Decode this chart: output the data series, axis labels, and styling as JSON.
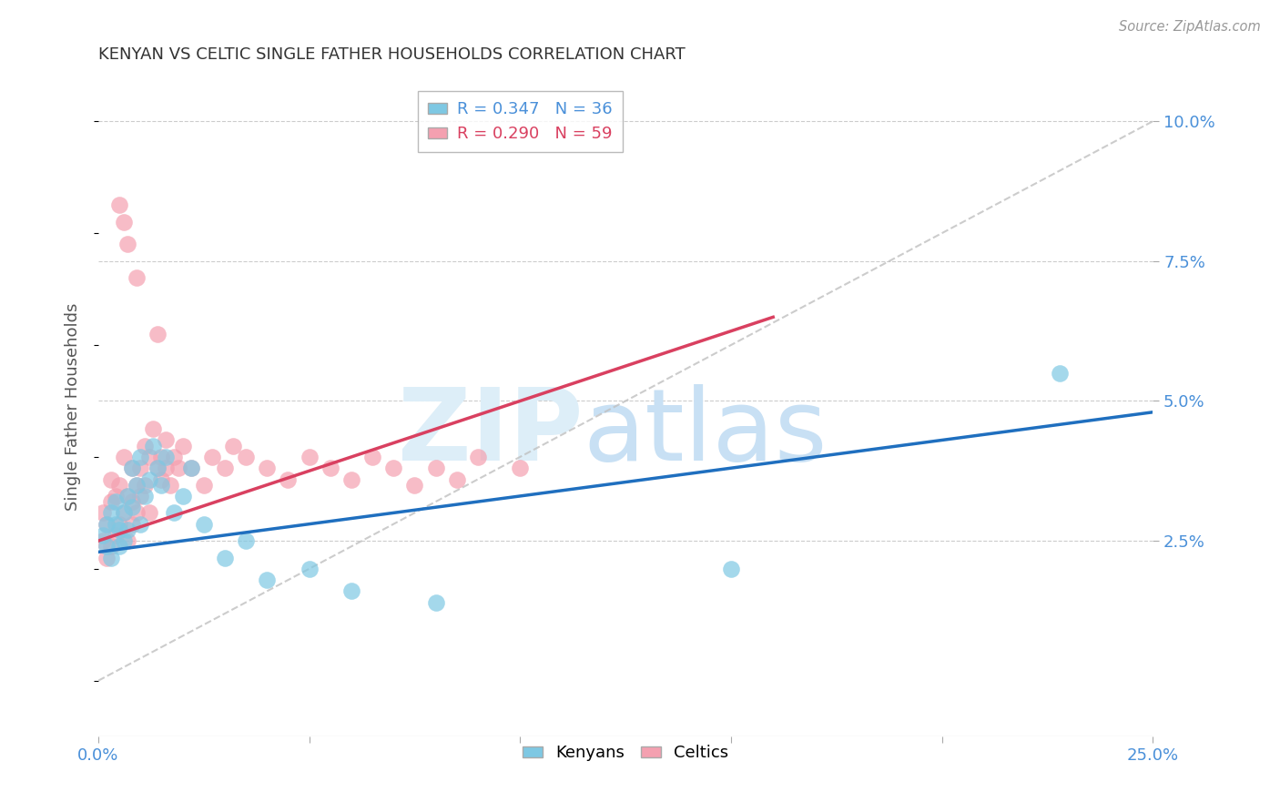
{
  "title": "KENYAN VS CELTIC SINGLE FATHER HOUSEHOLDS CORRELATION CHART",
  "source": "Source: ZipAtlas.com",
  "ylabel": "Single Father Households",
  "xlim": [
    0.0,
    0.25
  ],
  "ylim": [
    -0.01,
    0.108
  ],
  "yticks": [
    0.025,
    0.05,
    0.075,
    0.1
  ],
  "ytick_labels": [
    "2.5%",
    "5.0%",
    "7.5%",
    "10.0%"
  ],
  "xticks": [
    0.0,
    0.05,
    0.1,
    0.15,
    0.2,
    0.25
  ],
  "xtick_labels": [
    "0.0%",
    "",
    "",
    "",
    "",
    "25.0%"
  ],
  "kenyan_R": 0.347,
  "kenyan_N": 36,
  "celtic_R": 0.29,
  "celtic_N": 59,
  "kenyan_color": "#7ec8e3",
  "celtic_color": "#f4a0b0",
  "kenyan_line_color": "#1f6fbf",
  "celtic_line_color": "#d94060",
  "background_color": "#ffffff",
  "grid_color": "#cccccc",
  "axis_color": "#4a90d9",
  "kenyan_line": [
    [
      0.0,
      0.25
    ],
    [
      0.023,
      0.048
    ]
  ],
  "celtic_line": [
    [
      0.0,
      0.16
    ],
    [
      0.025,
      0.065
    ]
  ],
  "diag_line": [
    [
      0.0,
      0.25
    ],
    [
      0.0,
      0.1
    ]
  ],
  "kenyan_x": [
    0.001,
    0.002,
    0.002,
    0.003,
    0.003,
    0.004,
    0.004,
    0.005,
    0.005,
    0.006,
    0.006,
    0.007,
    0.007,
    0.008,
    0.008,
    0.009,
    0.01,
    0.01,
    0.011,
    0.012,
    0.013,
    0.014,
    0.015,
    0.016,
    0.018,
    0.02,
    0.022,
    0.025,
    0.03,
    0.035,
    0.04,
    0.05,
    0.06,
    0.08,
    0.15,
    0.228
  ],
  "kenyan_y": [
    0.026,
    0.024,
    0.028,
    0.022,
    0.03,
    0.028,
    0.032,
    0.024,
    0.027,
    0.025,
    0.03,
    0.033,
    0.027,
    0.038,
    0.031,
    0.035,
    0.028,
    0.04,
    0.033,
    0.036,
    0.042,
    0.038,
    0.035,
    0.04,
    0.03,
    0.033,
    0.038,
    0.028,
    0.022,
    0.025,
    0.018,
    0.02,
    0.016,
    0.014,
    0.02,
    0.055
  ],
  "celtic_x": [
    0.001,
    0.001,
    0.002,
    0.002,
    0.003,
    0.003,
    0.003,
    0.004,
    0.004,
    0.005,
    0.005,
    0.005,
    0.006,
    0.006,
    0.006,
    0.007,
    0.007,
    0.007,
    0.008,
    0.008,
    0.008,
    0.009,
    0.009,
    0.009,
    0.01,
    0.01,
    0.011,
    0.011,
    0.012,
    0.012,
    0.013,
    0.014,
    0.014,
    0.015,
    0.015,
    0.016,
    0.016,
    0.017,
    0.018,
    0.019,
    0.02,
    0.022,
    0.025,
    0.027,
    0.03,
    0.032,
    0.035,
    0.04,
    0.045,
    0.05,
    0.055,
    0.06,
    0.065,
    0.07,
    0.075,
    0.08,
    0.085,
    0.09,
    0.1
  ],
  "celtic_y": [
    0.025,
    0.03,
    0.022,
    0.028,
    0.024,
    0.032,
    0.036,
    0.026,
    0.033,
    0.028,
    0.035,
    0.085,
    0.03,
    0.04,
    0.082,
    0.033,
    0.025,
    0.078,
    0.038,
    0.028,
    0.032,
    0.035,
    0.03,
    0.072,
    0.038,
    0.033,
    0.042,
    0.035,
    0.04,
    0.03,
    0.045,
    0.038,
    0.062,
    0.04,
    0.036,
    0.043,
    0.038,
    0.035,
    0.04,
    0.038,
    0.042,
    0.038,
    0.035,
    0.04,
    0.038,
    0.042,
    0.04,
    0.038,
    0.036,
    0.04,
    0.038,
    0.036,
    0.04,
    0.038,
    0.035,
    0.038,
    0.036,
    0.04,
    0.038
  ]
}
